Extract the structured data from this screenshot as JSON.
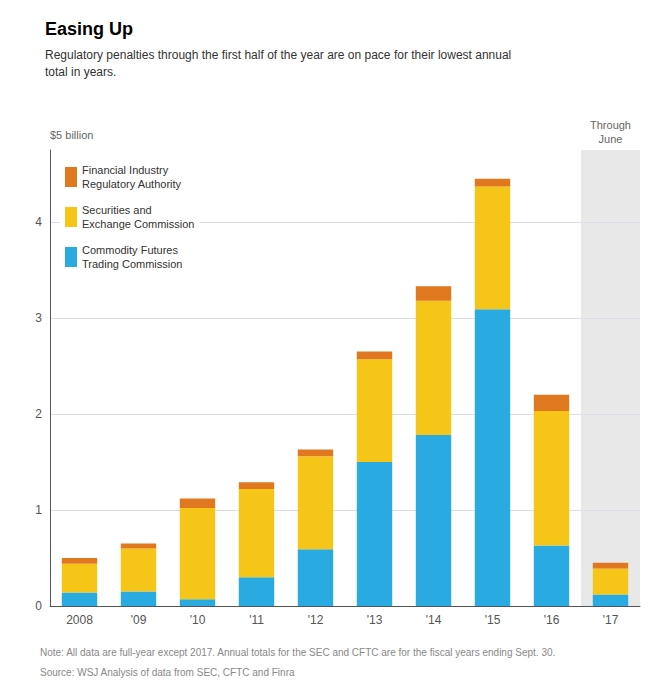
{
  "chart_data": {
    "type": "bar",
    "stacked": true,
    "title": "Easing Up",
    "subtitle": "Regulatory penalties through the first half of the year are on pace for their lowest annual\ntotal in years.",
    "ylabel": "$5 billion",
    "annotation": "Through\nJune",
    "note": "Note: All data are full-year except 2017. Annual totals for the SEC and CFTC are for the fiscal years ending Sept. 30.",
    "source": "Source: WSJ Analysis of data from SEC, CFTC and Finra",
    "categories": [
      "2008",
      "'09",
      "'10",
      "'11",
      "'12",
      "'13",
      "'14",
      "'15",
      "'16",
      "'17"
    ],
    "series": [
      {
        "name": "Commodity Futures\nTrading Commission",
        "color": "#29ABE2",
        "values": [
          0.14,
          0.15,
          0.07,
          0.3,
          0.59,
          1.5,
          1.78,
          3.09,
          0.63,
          0.12
        ]
      },
      {
        "name": "Securities and\nExchange Commission",
        "color": "#F5C518",
        "values": [
          0.3,
          0.45,
          0.95,
          0.92,
          0.97,
          1.07,
          1.4,
          1.28,
          1.4,
          0.27
        ]
      },
      {
        "name": "Financial Industry\nRegulatory Authority",
        "color": "#E07820",
        "values": [
          0.06,
          0.05,
          0.1,
          0.07,
          0.07,
          0.08,
          0.15,
          0.08,
          0.17,
          0.06
        ]
      }
    ],
    "ylim": [
      0,
      4.75
    ],
    "yticks": [
      0,
      1,
      2,
      3,
      4
    ],
    "grid": true,
    "legend": "upper left"
  }
}
